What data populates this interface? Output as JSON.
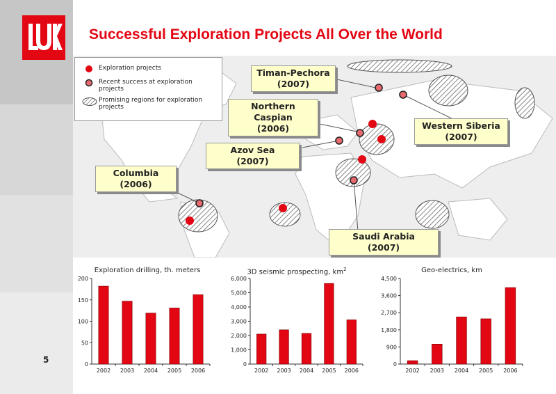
{
  "slide": {
    "title": "Successful Exploration Projects All Over the World",
    "page_number": "5",
    "logo_text": "LUK",
    "accent_color": "#e30613"
  },
  "legend": {
    "items": [
      {
        "label": "Exploration projects",
        "marker": "red-dot"
      },
      {
        "label": "Recent success at exploration projects",
        "marker": "red-dot-outlined"
      },
      {
        "label": "Promising regions for exploration projects",
        "marker": "hatched-ellipse"
      }
    ]
  },
  "callouts": [
    {
      "name": "timan-pechora",
      "region": "Timan-Pechora",
      "year": "(2007)"
    },
    {
      "name": "northern-caspian",
      "region": "Northern Caspian",
      "year": "(2006)"
    },
    {
      "name": "azov-sea",
      "region": "Azov Sea",
      "year": "(2007)"
    },
    {
      "name": "columbia",
      "region": "Columbia",
      "year": "(2006)"
    },
    {
      "name": "western-siberia",
      "region": "Western Siberia",
      "year": "(2007)"
    },
    {
      "name": "saudi-arabia",
      "region": "Saudi Arabia",
      "year": "(2007)"
    }
  ],
  "chart_data": [
    {
      "type": "bar",
      "title": "Exploration drilling, th. meters",
      "categories": [
        "2002",
        "2003",
        "2004",
        "2005",
        "2006"
      ],
      "values": [
        182,
        147,
        119,
        131,
        162
      ],
      "ylim": [
        0,
        200
      ],
      "yticks": [
        "0",
        "50",
        "100",
        "150",
        "200"
      ],
      "color": "#e30613"
    },
    {
      "type": "bar",
      "title": "3D seismic prospecting, km",
      "title_superscript": "2",
      "categories": [
        "2002",
        "2003",
        "2004",
        "2005",
        "2006"
      ],
      "values": [
        2100,
        2400,
        2150,
        5650,
        3100
      ],
      "ylim": [
        0,
        6000
      ],
      "yticks": [
        "0",
        "1,000",
        "2,000",
        "3,000",
        "4,000",
        "5,000",
        "6,000"
      ],
      "color": "#e30613"
    },
    {
      "type": "bar",
      "title": "Geo-electrics, km",
      "categories": [
        "2002",
        "2003",
        "2004",
        "2005",
        "2006"
      ],
      "values": [
        180,
        1050,
        2480,
        2380,
        4020
      ],
      "ylim": [
        0,
        4500
      ],
      "yticks": [
        "0",
        "900",
        "1,800",
        "2,700",
        "3,600",
        "4,500"
      ],
      "color": "#e30613"
    }
  ]
}
